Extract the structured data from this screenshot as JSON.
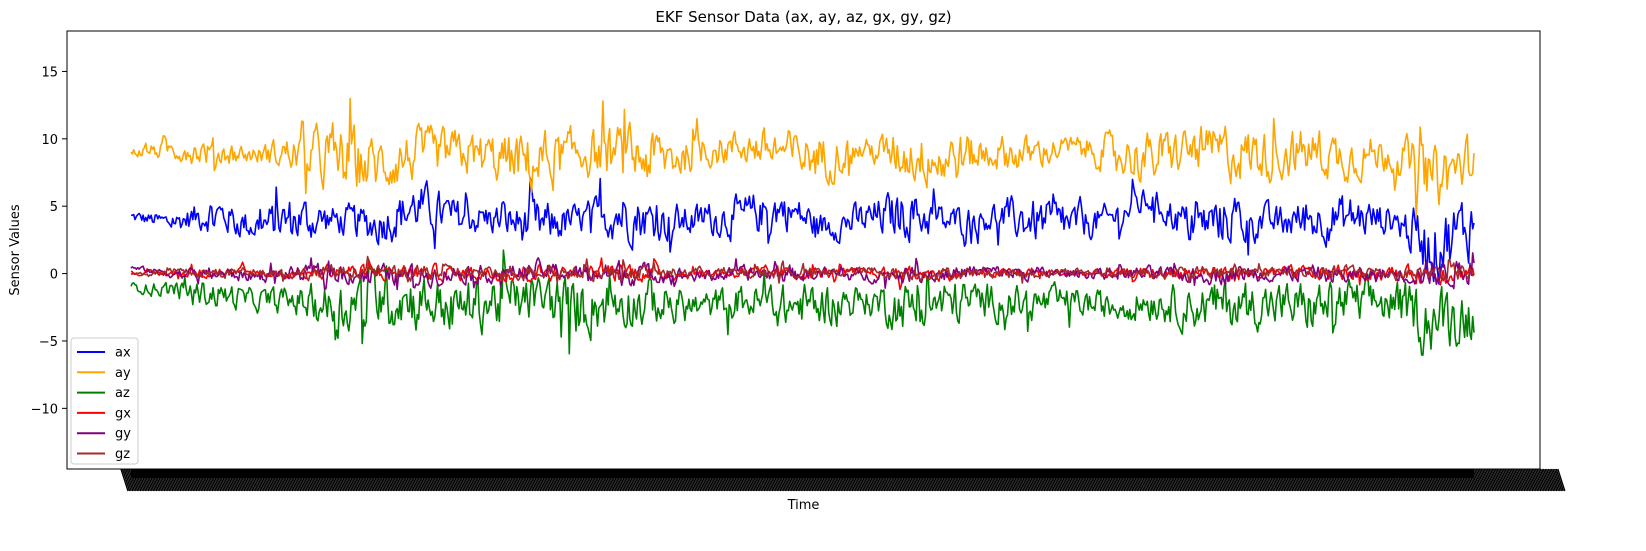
{
  "chart_data": {
    "type": "line",
    "title": "EKF Sensor Data (ax, ay, az, gx, gy, gz)",
    "xlabel": "Time",
    "ylabel": "Sensor Values",
    "ylim": [
      -14.5,
      18.0
    ],
    "yticks": [
      -10,
      -5,
      0,
      5,
      10,
      15
    ],
    "ytick_labels": [
      "−10",
      "−5",
      "0",
      "5",
      "10",
      "15"
    ],
    "x_tick_labels_note": "x tick labels are densely overlapping and illegible",
    "grid": false,
    "legend_position": "lower-left",
    "series": [
      {
        "name": "ax",
        "color": "#0000ff",
        "centers": [
          4.2,
          3.8,
          4.5,
          3.5,
          4.0,
          4.0,
          3.6,
          5.0,
          4.2,
          4.0,
          3.5,
          4.0,
          4.5,
          3.8,
          4.0,
          4.2,
          4.8,
          3.5,
          4.0,
          4.5,
          3.8,
          4.2,
          4.0,
          3.6,
          4.0,
          5.5,
          3.5,
          4.2,
          3.8,
          4.0,
          4.2,
          4.0,
          2.0,
          3.8
        ],
        "amps": [
          0.8,
          1.2,
          2.5,
          2.0,
          3.5,
          2.0,
          2.8,
          3.5,
          2.5,
          2.2,
          3.5,
          2.0,
          3.8,
          2.8,
          2.2,
          3.0,
          2.8,
          2.0,
          2.5,
          3.5,
          2.2,
          2.0,
          3.2,
          2.8,
          2.0,
          1.8,
          2.8,
          3.8,
          2.2,
          3.0,
          3.2,
          2.0,
          5.0,
          4.5
        ],
        "color_name": "blue"
      },
      {
        "name": "ay",
        "color": "#ffa500",
        "centers": [
          9.0,
          9.2,
          9.0,
          8.8,
          9.0,
          8.5,
          8.0,
          8.8,
          9.0,
          8.5,
          8.2,
          9.0,
          8.8,
          8.5,
          9.0,
          9.5,
          9.0,
          8.6,
          9.2,
          8.8,
          8.5,
          9.0,
          8.8,
          9.4,
          9.0,
          8.5,
          9.2,
          9.0,
          8.8,
          9.0,
          8.6,
          9.0,
          7.0,
          8.5
        ],
        "amps": [
          0.6,
          1.5,
          2.0,
          1.2,
          2.5,
          5.0,
          4.0,
          3.5,
          3.0,
          3.5,
          4.5,
          3.0,
          4.0,
          4.0,
          2.0,
          2.5,
          3.0,
          3.5,
          1.5,
          3.5,
          4.0,
          2.5,
          2.5,
          1.5,
          2.5,
          3.5,
          3.0,
          4.0,
          3.5,
          3.5,
          3.0,
          2.5,
          4.5,
          3.5
        ],
        "color_name": "orange"
      },
      {
        "name": "az",
        "color": "#008000",
        "centers": [
          -1.0,
          -1.2,
          -1.5,
          -2.0,
          -2.0,
          -2.5,
          -1.5,
          -2.0,
          -2.5,
          -2.0,
          -1.8,
          -2.5,
          -2.0,
          -2.2,
          -2.5,
          -2.0,
          -2.5,
          -2.2,
          -2.0,
          -2.5,
          -2.2,
          -2.0,
          -2.3,
          -2.0,
          -2.5,
          -2.0,
          -2.5,
          -2.2,
          -2.3,
          -2.5,
          -2.0,
          -2.2,
          -3.5,
          -3.0
        ],
        "amps": [
          0.6,
          1.2,
          2.0,
          1.5,
          2.0,
          3.5,
          4.5,
          4.0,
          3.5,
          4.0,
          3.0,
          4.5,
          3.5,
          3.0,
          2.0,
          2.5,
          3.0,
          3.0,
          2.0,
          3.5,
          3.5,
          2.5,
          2.5,
          2.0,
          2.0,
          2.5,
          3.0,
          3.5,
          3.0,
          3.5,
          3.0,
          3.0,
          4.5,
          4.0
        ],
        "color_name": "green"
      },
      {
        "name": "gx",
        "color": "#ff0000",
        "centers": [
          0.0,
          0.0,
          0.1,
          0.0,
          0.0,
          0.2,
          0.0,
          0.1,
          0.0,
          0.0,
          0.1,
          0.0,
          0.2,
          0.0,
          0.0,
          0.1,
          0.0,
          0.0,
          0.1,
          0.0,
          0.0,
          0.0,
          0.1,
          0.0,
          0.0,
          0.0,
          0.1,
          0.0,
          0.0,
          0.1,
          0.0,
          0.0,
          0.0,
          0.2
        ],
        "amps": [
          0.2,
          0.5,
          0.8,
          0.6,
          0.8,
          1.2,
          1.0,
          1.2,
          1.0,
          1.0,
          1.2,
          0.8,
          1.5,
          1.0,
          0.6,
          0.8,
          1.0,
          0.8,
          0.6,
          1.0,
          1.0,
          0.6,
          0.8,
          0.5,
          0.6,
          0.8,
          0.8,
          1.2,
          0.8,
          1.0,
          1.0,
          0.8,
          1.5,
          1.5
        ],
        "color_name": "red"
      },
      {
        "name": "gy",
        "color": "#800080",
        "centers": [
          0.4,
          0.0,
          0.0,
          -0.2,
          0.0,
          0.0,
          0.0,
          -0.2,
          0.0,
          0.0,
          0.2,
          0.0,
          0.0,
          0.0,
          -0.2,
          0.0,
          0.0,
          0.0,
          -0.2,
          0.0,
          0.0,
          0.2,
          0.0,
          0.0,
          0.0,
          0.0,
          -0.2,
          0.0,
          0.0,
          0.0,
          -0.2,
          0.0,
          0.0,
          0.2
        ],
        "amps": [
          0.3,
          0.6,
          1.0,
          0.8,
          1.0,
          1.5,
          1.2,
          1.5,
          1.2,
          1.2,
          1.5,
          1.0,
          1.8,
          1.2,
          0.8,
          1.0,
          1.2,
          1.0,
          0.8,
          1.2,
          1.2,
          0.8,
          1.0,
          0.6,
          0.8,
          1.0,
          1.0,
          1.5,
          1.0,
          1.2,
          1.2,
          1.0,
          2.0,
          1.8
        ],
        "color_name": "purple"
      },
      {
        "name": "gz",
        "color": "#a52a2a",
        "centers": [
          0.0,
          0.1,
          0.0,
          0.2,
          0.0,
          0.1,
          0.2,
          0.0,
          0.1,
          0.0,
          0.2,
          0.0,
          0.1,
          0.0,
          0.2,
          0.0,
          0.1,
          0.0,
          0.2,
          0.0,
          0.0,
          0.1,
          0.0,
          0.2,
          0.0,
          0.1,
          0.0,
          0.2,
          0.1,
          0.0,
          0.2,
          0.0,
          0.1,
          0.0
        ],
        "amps": [
          0.2,
          0.5,
          0.8,
          0.6,
          0.8,
          1.0,
          0.9,
          1.0,
          0.9,
          0.9,
          1.0,
          0.8,
          1.2,
          0.9,
          0.6,
          0.8,
          0.9,
          0.8,
          0.6,
          0.9,
          0.9,
          0.6,
          0.8,
          0.5,
          0.6,
          0.8,
          0.8,
          1.0,
          0.8,
          0.9,
          0.9,
          0.8,
          1.2,
          1.2
        ],
        "color_name": "brown"
      }
    ]
  }
}
